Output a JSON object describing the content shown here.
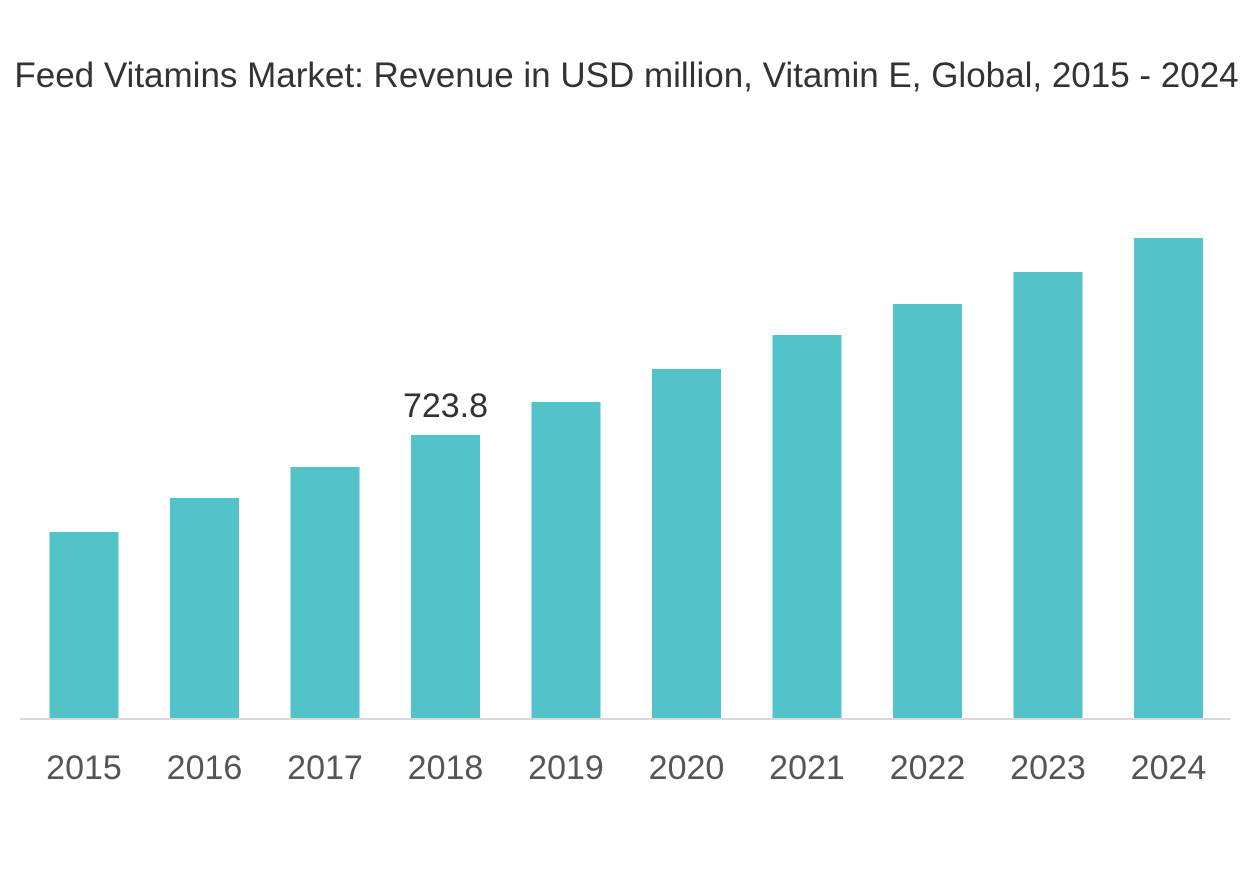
{
  "chart_data": {
    "type": "bar",
    "title": "Feed Vitamins Market: Revenue in USD million, Vitamin E, Global, 2015 - 2024",
    "categories": [
      "2015",
      "2016",
      "2017",
      "2018",
      "2019",
      "2020",
      "2021",
      "2022",
      "2023",
      "2024"
    ],
    "values": [
      475.7,
      562.7,
      642.0,
      723.8,
      808.2,
      892.6,
      979.6,
      1058.9,
      1140.7,
      1227.6
    ],
    "data_labels": {
      "2018": "723.8"
    },
    "xlabel": "",
    "ylabel": "",
    "ylim": [
      0,
      1300
    ],
    "grid": false,
    "legend": "none",
    "colors": {
      "bar": "#52c3c8",
      "axis": "#d9d9d9"
    }
  }
}
